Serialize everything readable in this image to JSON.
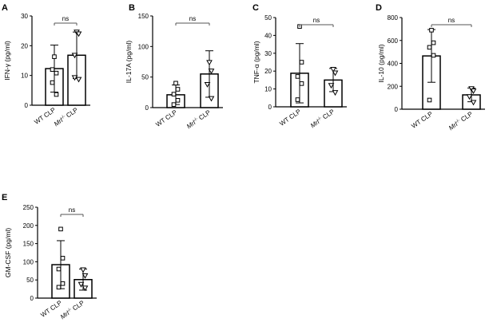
{
  "chart_data": [
    {
      "panel": "A",
      "type": "bar",
      "ylabel": "IFN-γ (pg/ml)",
      "ylim": [
        0,
        30
      ],
      "yticks": [
        0,
        10,
        20,
        30
      ],
      "categories": [
        "WT CLP",
        "Mrl-/- CLP"
      ],
      "series": [
        {
          "values": [
            12.3,
            16.8
          ],
          "sd": [
            7.9,
            7.8
          ]
        }
      ],
      "points": [
        [
          16.3,
          10.8,
          7.6,
          3.6,
          12.0
        ],
        [
          24.6,
          24.0,
          16.8,
          8.7,
          9.3
        ]
      ],
      "markers": [
        "square",
        "triangle-down"
      ],
      "significance": "ns"
    },
    {
      "panel": "B",
      "type": "bar",
      "ylabel": "IL-17A (pg/ml)",
      "ylim": [
        0,
        150
      ],
      "yticks": [
        0,
        50,
        100,
        150
      ],
      "categories": [
        "WT CLP",
        "Mrl-/- CLP"
      ],
      "series": [
        {
          "values": [
            21,
            55
          ],
          "sd": [
            16,
            38
          ]
        }
      ],
      "points": [
        [
          40,
          30,
          22,
          12,
          5
        ],
        [
          74,
          60,
          38,
          15
        ]
      ],
      "markers": [
        "square",
        "triangle-down"
      ],
      "significance": "ns"
    },
    {
      "panel": "C",
      "type": "bar",
      "ylabel": "TNF-α (pg/ml)",
      "ylim": [
        0,
        50
      ],
      "yticks": [
        0,
        10,
        20,
        30,
        40,
        50
      ],
      "categories": [
        "WT CLP",
        "Mrl-/- CLP"
      ],
      "series": [
        {
          "values": [
            18.8,
            15.0
          ],
          "sd": [
            16.6,
            6.5
          ]
        }
      ],
      "points": [
        [
          45,
          25,
          17,
          13,
          4
        ],
        [
          21,
          19,
          12,
          8
        ]
      ],
      "markers": [
        "square",
        "triangle-down"
      ],
      "significance": "ns"
    },
    {
      "panel": "D",
      "type": "bar",
      "ylabel": "IL-10 (pg/ml)",
      "ylim": [
        0,
        800
      ],
      "yticks": [
        0,
        200,
        400,
        600,
        800
      ],
      "categories": [
        "WT CLP",
        "Mrl-/- CLP"
      ],
      "series": [
        {
          "values": [
            465,
            125
          ],
          "sd": [
            230,
            60
          ]
        }
      ],
      "points": [
        [
          690,
          580,
          540,
          470,
          80
        ],
        [
          180,
          160,
          110,
          60
        ]
      ],
      "markers": [
        "square",
        "triangle-down"
      ],
      "significance": "ns"
    },
    {
      "panel": "E",
      "type": "bar",
      "ylabel": "GM-CSF (pg/ml)",
      "ylim": [
        0,
        250
      ],
      "yticks": [
        0,
        50,
        100,
        150,
        200,
        250
      ],
      "categories": [
        "WT CLP",
        "Mrl-/- CLP"
      ],
      "series": [
        {
          "values": [
            92,
            51
          ],
          "sd": [
            66,
            29
          ]
        }
      ],
      "points": [
        [
          190,
          110,
          80,
          40,
          30
        ],
        [
          78,
          62,
          38,
          28
        ]
      ],
      "markers": [
        "square",
        "triangle-down"
      ],
      "significance": "ns"
    }
  ]
}
